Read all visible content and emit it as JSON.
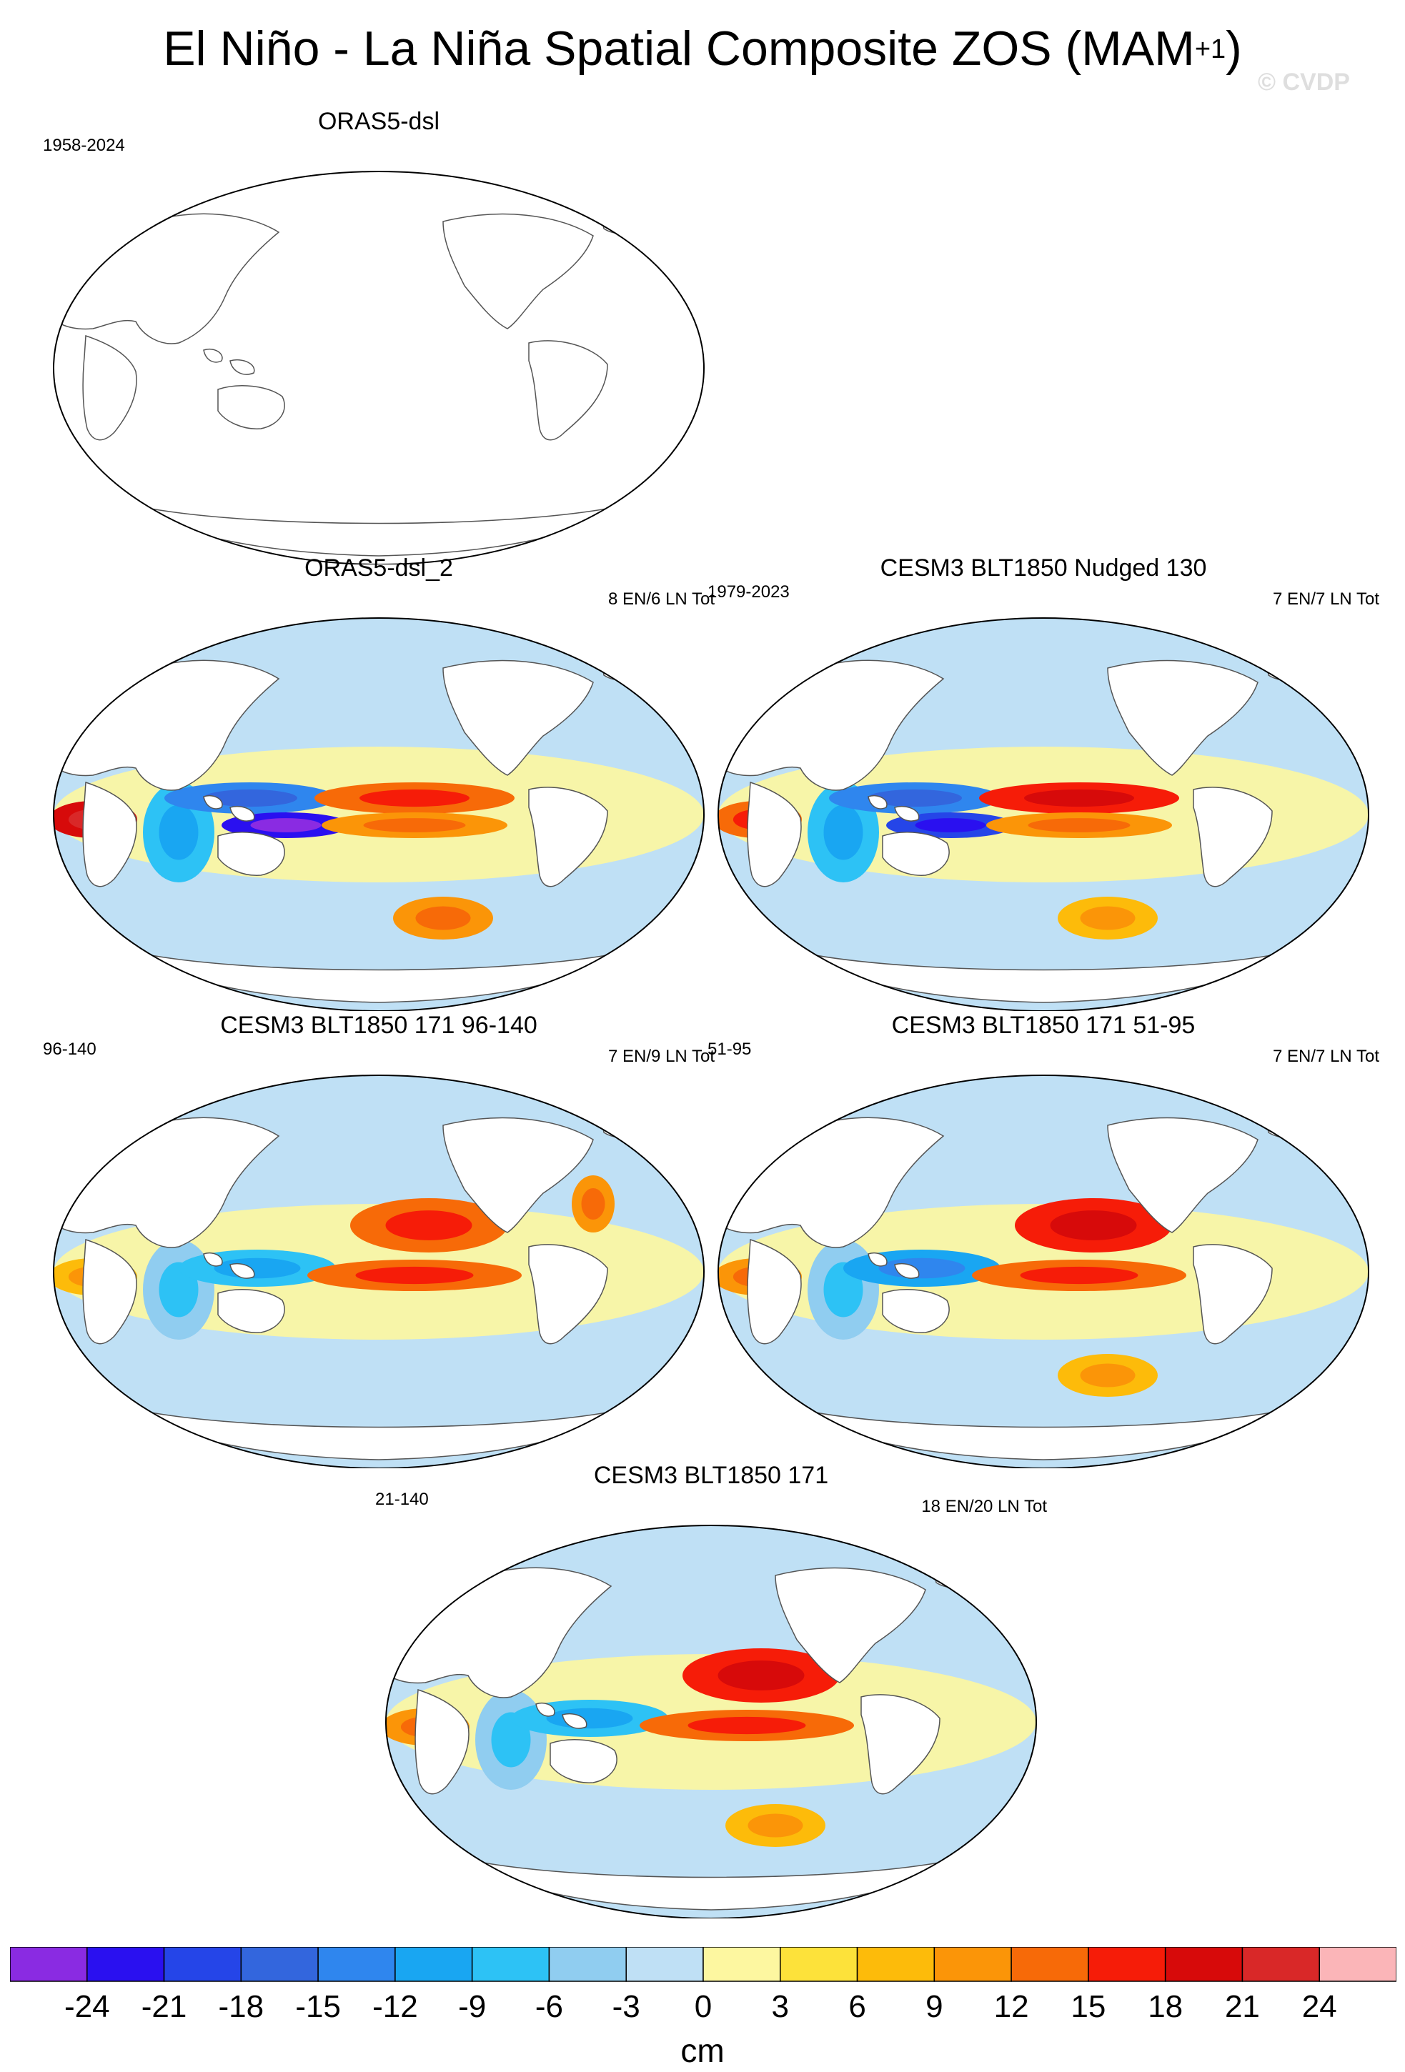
{
  "header": {
    "title": "El Niño - La Niña Spatial Composite ZOS (MAM",
    "title_superscript": "+1",
    "title_close": ")",
    "watermark": "© CVDP"
  },
  "chart_data": {
    "type": "heatmap",
    "title": "El Niño - La Niña Spatial Composite ZOS (MAM+1)",
    "variable": "ZOS",
    "season": "MAM+1",
    "units": "cm",
    "colorbar": {
      "levels": [
        -24,
        -21,
        -18,
        -15,
        -12,
        -9,
        -6,
        -3,
        0,
        3,
        6,
        9,
        12,
        15,
        18,
        21,
        24
      ],
      "colors": [
        "#8a2be2",
        "#2a10f0",
        "#2545e8",
        "#3366dd",
        "#2f86ee",
        "#19a6f2",
        "#2dc2f5",
        "#90cdf0",
        "#bfe0f5",
        "#fdf7a0",
        "#fde23a",
        "#fdbb0a",
        "#fb9508",
        "#f76a08",
        "#f61c08",
        "#d70a0a",
        "#d92828",
        "#fbb5b8"
      ],
      "label": "cm"
    },
    "panels": [
      {
        "title": "ORAS5-dsl",
        "left_label": "1958-2024",
        "right_label": "",
        "has_data": false,
        "anomalies": []
      },
      {
        "title": "ORAS5-dsl_2",
        "left_label": "",
        "right_label": "8 EN/6 LN Tot",
        "has_data": true,
        "anomalies": [
          {
            "region": "western Indian Ocean",
            "value": 18
          },
          {
            "region": "eastern Indian Ocean",
            "value": -9
          },
          {
            "region": "western tropical Pacific north",
            "value": -15
          },
          {
            "region": "western tropical Pacific south",
            "value": -24
          },
          {
            "region": "central-eastern Pacific north",
            "value": 12
          },
          {
            "region": "central-eastern Pacific south",
            "value": 9
          },
          {
            "region": "south Pacific",
            "value": 9
          }
        ]
      },
      {
        "title": "CESM3 BLT1850 Nudged 130",
        "left_label": "1979-2023",
        "right_label": "7 EN/7 LN Tot",
        "has_data": true,
        "anomalies": [
          {
            "region": "western Indian Ocean",
            "value": 12
          },
          {
            "region": "eastern Indian Ocean",
            "value": -9
          },
          {
            "region": "western tropical Pacific north",
            "value": -15
          },
          {
            "region": "western tropical Pacific south",
            "value": -21
          },
          {
            "region": "central-eastern Pacific north",
            "value": 15
          },
          {
            "region": "central-eastern Pacific south",
            "value": 9
          },
          {
            "region": "south Pacific",
            "value": 6
          }
        ]
      },
      {
        "title": "CESM3 BLT1850 171 96-140",
        "left_label": "96-140",
        "right_label": "7 EN/9 LN Tot",
        "has_data": true,
        "anomalies": [
          {
            "region": "western Indian Ocean",
            "value": 6
          },
          {
            "region": "eastern Indian Ocean",
            "value": -6
          },
          {
            "region": "western tropical Pacific",
            "value": -9
          },
          {
            "region": "north Pacific",
            "value": 12
          },
          {
            "region": "eastern equatorial Pacific",
            "value": 12
          },
          {
            "region": "north Atlantic",
            "value": 9
          }
        ]
      },
      {
        "title": "CESM3 BLT1850 171 51-95",
        "left_label": "51-95",
        "right_label": "7 EN/7 LN Tot",
        "has_data": true,
        "anomalies": [
          {
            "region": "western Indian Ocean",
            "value": 9
          },
          {
            "region": "eastern Indian Ocean",
            "value": -6
          },
          {
            "region": "western tropical Pacific",
            "value": -12
          },
          {
            "region": "north Pacific",
            "value": 15
          },
          {
            "region": "eastern equatorial Pacific",
            "value": 12
          },
          {
            "region": "south Pacific",
            "value": 6
          }
        ]
      },
      {
        "title": "CESM3 BLT1850 171",
        "left_label": "21-140",
        "right_label": "18 EN/20 LN Tot",
        "has_data": true,
        "anomalies": [
          {
            "region": "western Indian Ocean",
            "value": 9
          },
          {
            "region": "eastern Indian Ocean",
            "value": -6
          },
          {
            "region": "western tropical Pacific",
            "value": -9
          },
          {
            "region": "north Pacific",
            "value": 15
          },
          {
            "region": "eastern equatorial Pacific",
            "value": 12
          },
          {
            "region": "south Pacific",
            "value": 6
          }
        ]
      }
    ]
  }
}
